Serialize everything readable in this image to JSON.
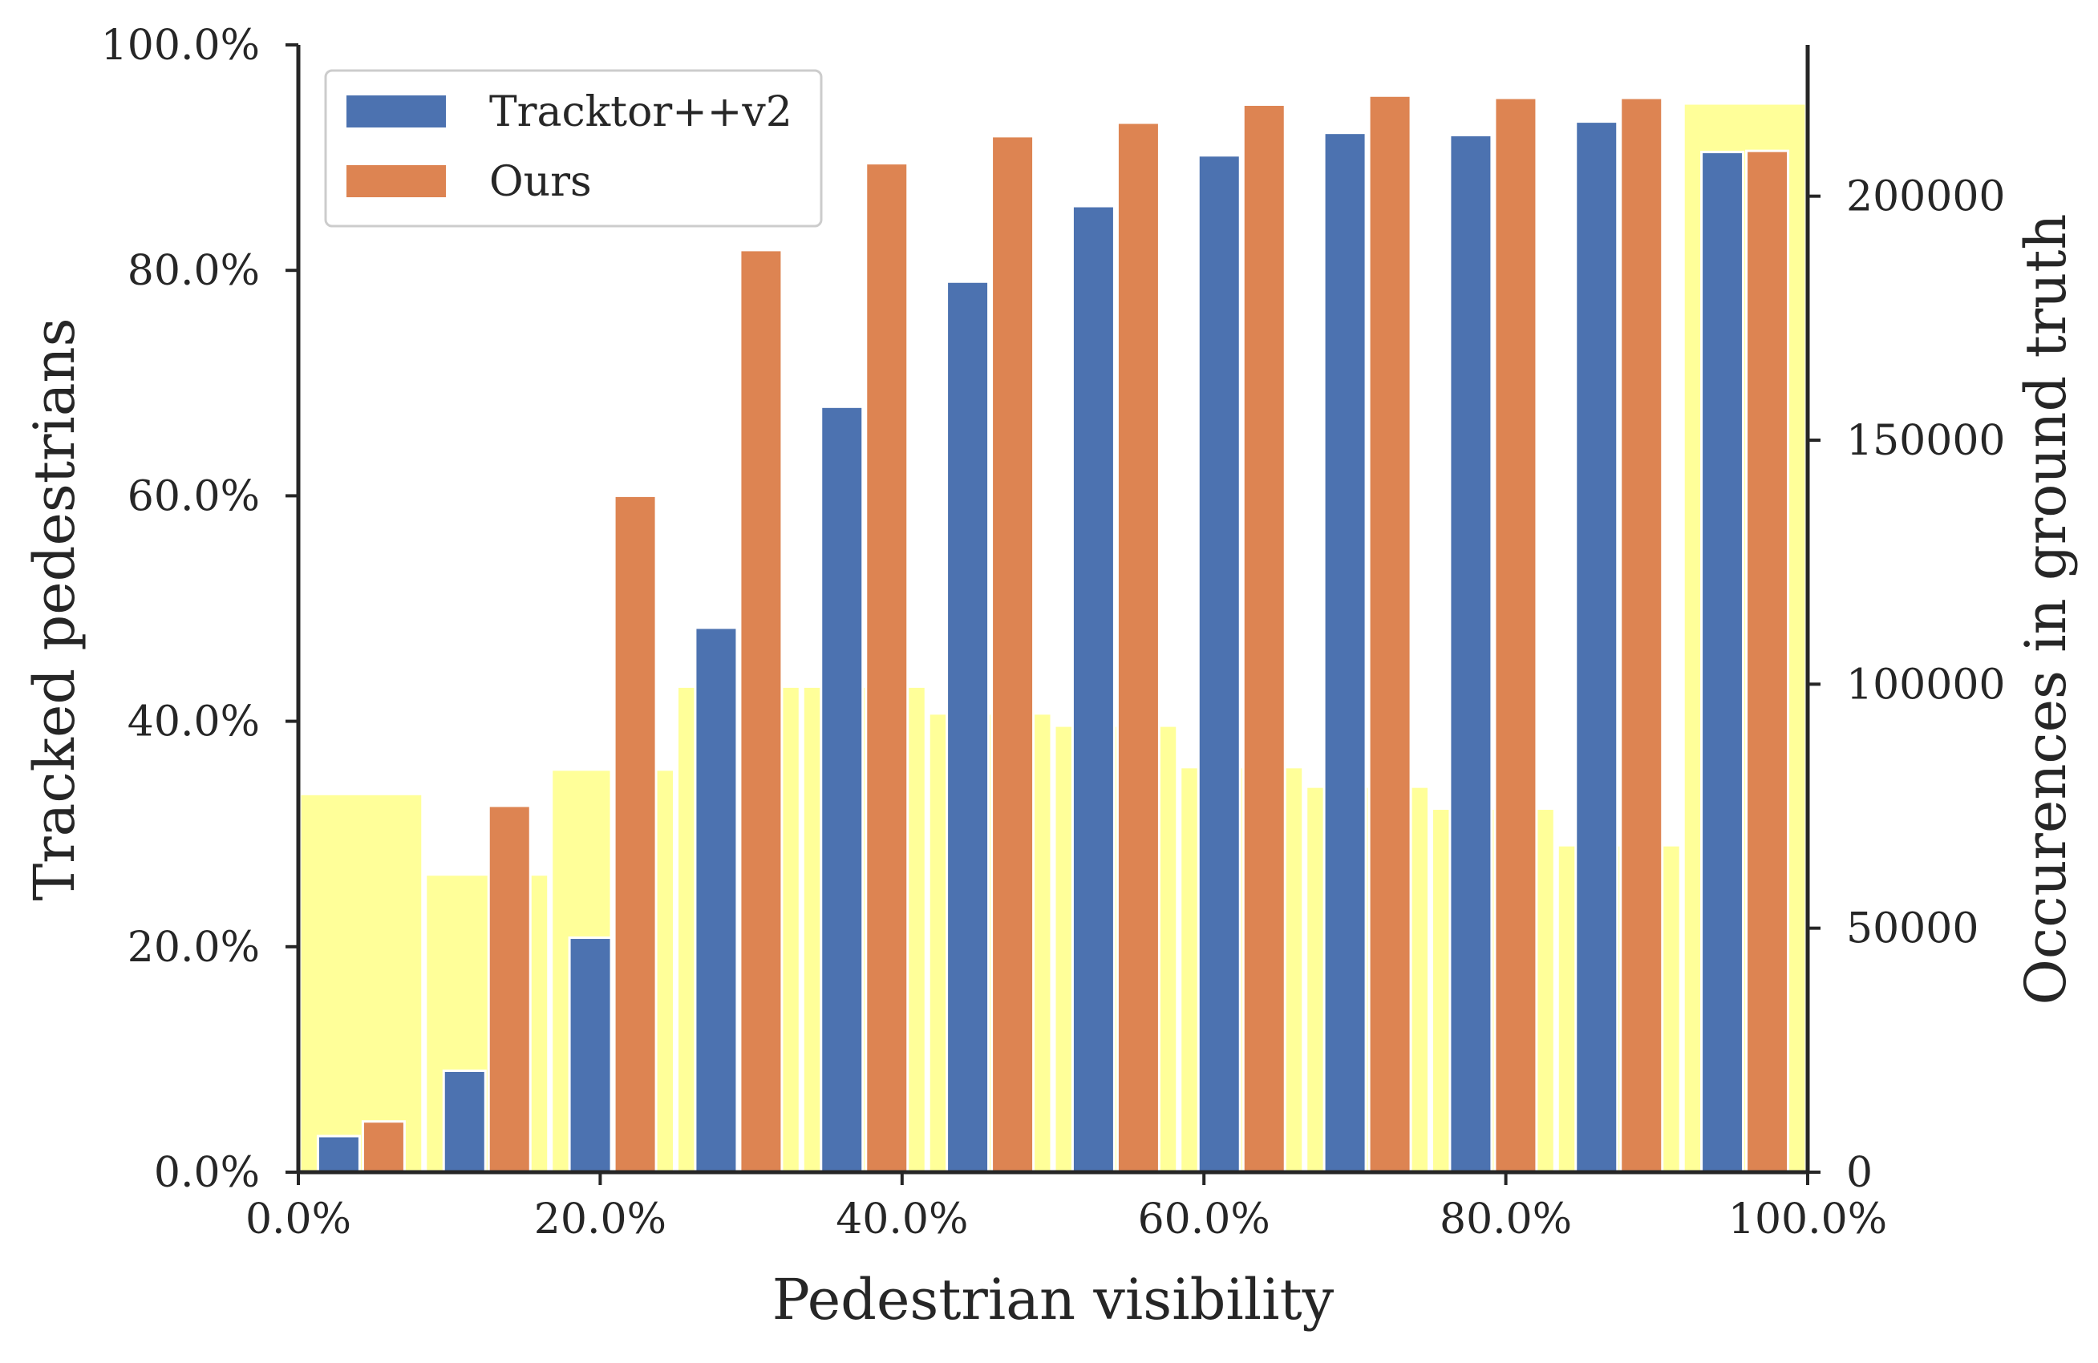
{
  "chart_data": {
    "type": "bar",
    "xlabel": "Pedestrian visibility",
    "ylabel": "Tracked pedestrians",
    "ylabel_right": "Occurences in ground truth",
    "xlim": [
      0,
      100
    ],
    "ylim": [
      0,
      100
    ],
    "ylim_right": [
      0,
      231000
    ],
    "x_ticks": [
      "0.0%",
      "20.0%",
      "40.0%",
      "60.0%",
      "80.0%",
      "100.0%"
    ],
    "y_ticks": [
      "0.0%",
      "20.0%",
      "40.0%",
      "60.0%",
      "80.0%",
      "100.0%"
    ],
    "y_ticks_right": [
      "0",
      "50000",
      "100000",
      "150000",
      "200000"
    ],
    "categories": [
      "0-8.3%",
      "8.3-16.7%",
      "16.7-25%",
      "25-33.3%",
      "33.3-41.7%",
      "41.7-50%",
      "50-58.3%",
      "58.3-66.7%",
      "66.7-75%",
      "75-83.3%",
      "83.3-91.7%",
      "91.7-100%"
    ],
    "series": [
      {
        "name": "Tracktor++v2",
        "color": "#4c72b0",
        "values": [
          3.2,
          9.0,
          20.8,
          48.3,
          67.9,
          79.0,
          85.7,
          90.2,
          92.2,
          92.0,
          93.2,
          90.5
        ]
      },
      {
        "name": "Ours",
        "color": "#dd8452",
        "values": [
          4.5,
          32.5,
          60.0,
          81.8,
          89.5,
          91.9,
          93.1,
          94.7,
          95.5,
          95.3,
          95.3,
          90.6
        ]
      }
    ],
    "occurrences": {
      "name": "Occurences in ground truth",
      "color": "#ffff99",
      "bins": [
        {
          "from": 0,
          "to": 8.33,
          "count": 77500
        },
        {
          "from": 8.33,
          "to": 16.67,
          "count": 61000
        },
        {
          "from": 16.67,
          "to": 20.83,
          "count": 82500
        },
        {
          "from": 20.83,
          "to": 25.0,
          "count": 82500
        },
        {
          "from": 25.0,
          "to": 29.17,
          "count": 99500
        },
        {
          "from": 29.17,
          "to": 33.33,
          "count": 99500
        },
        {
          "from": 33.33,
          "to": 41.67,
          "count": 99500
        },
        {
          "from": 41.67,
          "to": 50.0,
          "count": 94000
        },
        {
          "from": 50.0,
          "to": 58.33,
          "count": 91500
        },
        {
          "from": 58.33,
          "to": 66.67,
          "count": 83000
        },
        {
          "from": 66.67,
          "to": 75.0,
          "count": 79000
        },
        {
          "from": 75.0,
          "to": 83.33,
          "count": 74500
        },
        {
          "from": 83.33,
          "to": 91.67,
          "count": 67000
        },
        {
          "from": 91.67,
          "to": 100.0,
          "count": 219000
        }
      ]
    },
    "legend": {
      "position": "top-left",
      "entries": [
        "Tracktor++v2",
        "Ours"
      ]
    },
    "grid": false
  }
}
